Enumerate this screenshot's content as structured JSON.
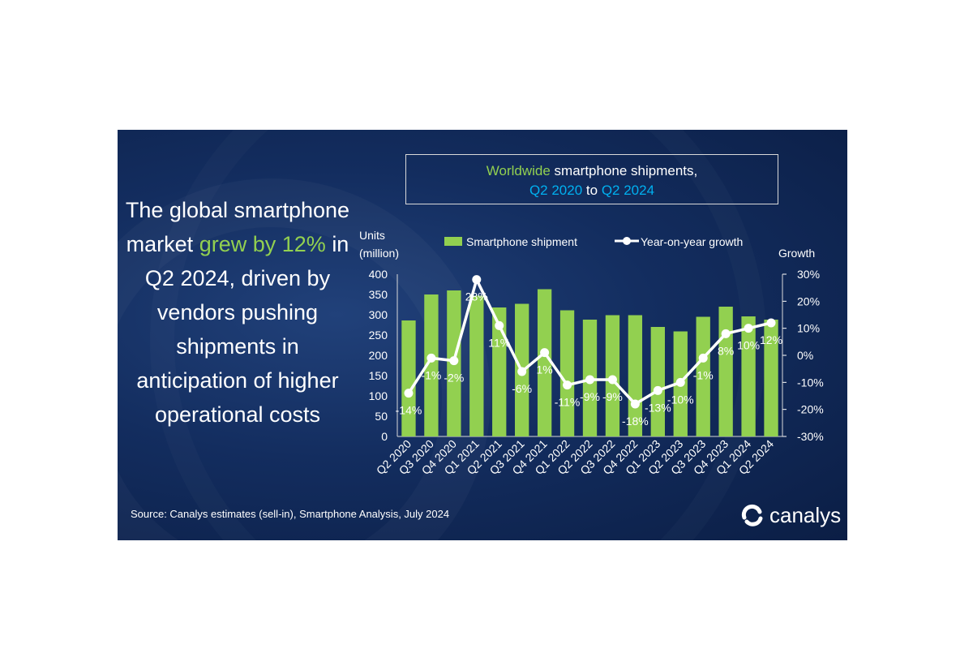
{
  "headline": {
    "line1": "The global smartphone market",
    "highlight": "grew by 12%",
    "line2": "in Q2 2024, driven by vendors pushing shipments in anticipation of higher operational costs"
  },
  "title": {
    "part1": "Worldwide",
    "part2": "smartphone shipments,",
    "part3": "Q2 2020",
    "part4": "to",
    "part5": "Q2 2024"
  },
  "source": "Source:  Canalys estimates (sell-in), Smartphone Analysis, July 2024",
  "logo": {
    "text": "canalys",
    "icon": "canalys-logo-icon"
  },
  "colors": {
    "bar": "#92d050",
    "line": "#ffffff",
    "highlight": "#92d050",
    "accent": "#00b0f0"
  },
  "chart_data": {
    "type": "bar",
    "categories": [
      "Q2 2020",
      "Q3 2020",
      "Q4 2020",
      "Q1 2021",
      "Q2 2021",
      "Q3 2021",
      "Q4 2021",
      "Q1 2022",
      "Q2 2022",
      "Q3 2022",
      "Q4 2022",
      "Q1 2023",
      "Q2 2023",
      "Q3 2023",
      "Q4 2023",
      "Q1 2024",
      "Q2 2024"
    ],
    "ylabel_left": [
      "Units",
      "(million)"
    ],
    "ylabel_right": "Growth",
    "ylim_left": [
      0,
      400
    ],
    "yticks_left": [
      "0",
      "50",
      "100",
      "150",
      "200",
      "250",
      "300",
      "350",
      "400"
    ],
    "ylim_right": [
      -30,
      30
    ],
    "yticks_right": [
      "-30%",
      "-20%",
      "-10%",
      "0%",
      "10%",
      "20%",
      "30%"
    ],
    "legend_position": "top",
    "series": [
      {
        "name": "Smartphone shipment",
        "type": "bar",
        "axis": "left",
        "values": [
          286,
          350,
          360,
          347,
          318,
          327,
          363,
          311,
          288,
          299,
          299,
          270,
          259,
          295,
          320,
          296,
          288
        ]
      },
      {
        "name": "Year-on-year growth",
        "type": "line",
        "axis": "right",
        "values": [
          -14,
          -1,
          -2,
          28,
          11,
          -6,
          1,
          -11,
          -9,
          -9,
          -18,
          -13,
          -10,
          -1,
          8,
          10,
          12
        ],
        "labels": [
          "-14%",
          "-1%",
          "-2%",
          "28%",
          "11%",
          "-6%",
          "1%",
          "-11%",
          "-9%",
          "-9%",
          "-18%",
          "-13%",
          "-10%",
          "-1%",
          "8%",
          "10%",
          "12%"
        ]
      }
    ]
  }
}
